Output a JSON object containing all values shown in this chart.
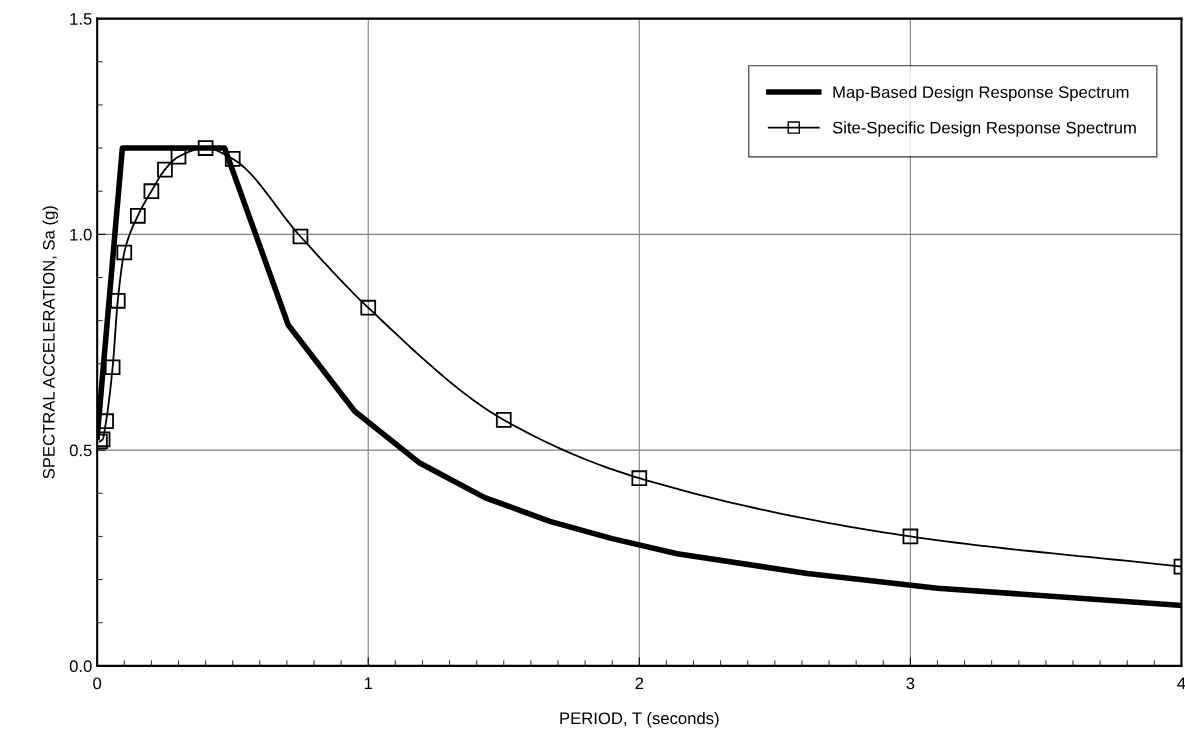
{
  "chart_data": {
    "type": "line",
    "xlabel": "PERIOD, T (seconds)",
    "ylabel": "SPECTRAL ACCELERATION, Sa (g)",
    "xlim": [
      0,
      4
    ],
    "ylim": [
      0,
      1.5
    ],
    "xticks": [
      0,
      1,
      2,
      3,
      4
    ],
    "yticks": [
      {
        "value": 0,
        "label": "0.0"
      },
      {
        "value": 0.5,
        "label": "0.5"
      },
      {
        "value": 1,
        "label": "1.0"
      },
      {
        "value": 1.5,
        "label": "1.5"
      }
    ],
    "grid": true,
    "legend": "top right",
    "series": [
      {
        "name": "Map-Based Design Response Spectrum",
        "color": "#000000",
        "marker": "none",
        "x": [
          0,
          0.093,
          0.47,
          0.705,
          0.95,
          1.19,
          1.43,
          1.67,
          1.9,
          2.14,
          2.62,
          3.1,
          4
        ],
        "values": [
          0.53,
          1.2,
          1.2,
          0.79,
          0.59,
          0.47,
          0.39,
          0.335,
          0.295,
          0.26,
          0.214,
          0.18,
          0.14
        ]
      },
      {
        "name": "Site-Specific Design Response Spectrum",
        "color": "#000000",
        "marker": "square",
        "x": [
          0.01,
          0.02,
          0.033,
          0.057,
          0.076,
          0.1,
          0.15,
          0.2,
          0.25,
          0.3,
          0.4,
          0.5,
          0.75,
          1,
          1.5,
          2,
          3,
          4
        ],
        "values": [
          0.52,
          0.525,
          0.567,
          0.692,
          0.846,
          0.958,
          1.043,
          1.1,
          1.15,
          1.18,
          1.2,
          1.175,
          0.995,
          0.83,
          0.57,
          0.435,
          0.3,
          0.23
        ]
      }
    ]
  }
}
